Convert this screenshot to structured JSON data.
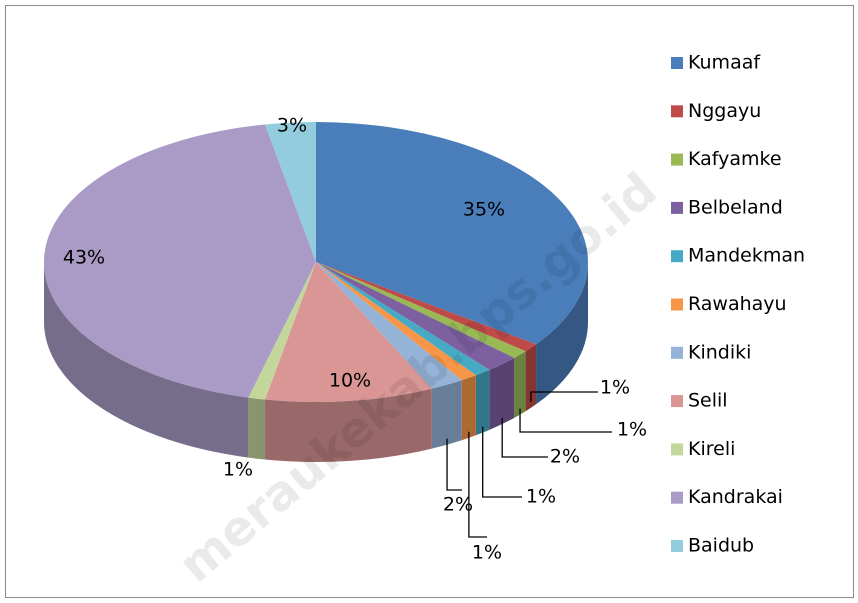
{
  "chart_data": {
    "type": "pie3d",
    "watermark": "meraukekab.bps.go.id",
    "categories": [
      "Kumaaf",
      "Nggayu",
      "Kafyamke",
      "Belbeland",
      "Mandekman",
      "Rawahayu",
      "Kindiki",
      "Selil",
      "Kireli",
      "Kandrakai",
      "Baidub"
    ],
    "values": [
      35,
      1,
      1,
      2,
      1,
      1,
      2,
      10,
      1,
      43,
      3
    ],
    "value_labels": [
      "35%",
      "1%",
      "1%",
      "2%",
      "1%",
      "1%",
      "2%",
      "10%",
      "1%",
      "43%",
      "3%"
    ],
    "colors": [
      "#4a7ebb",
      "#be4b48",
      "#98b954",
      "#7d60a0",
      "#46aac5",
      "#f79646",
      "#95b3d7",
      "#d99694",
      "#c3d69b",
      "#a99bc5",
      "#93cddd"
    ],
    "legend": "right"
  }
}
